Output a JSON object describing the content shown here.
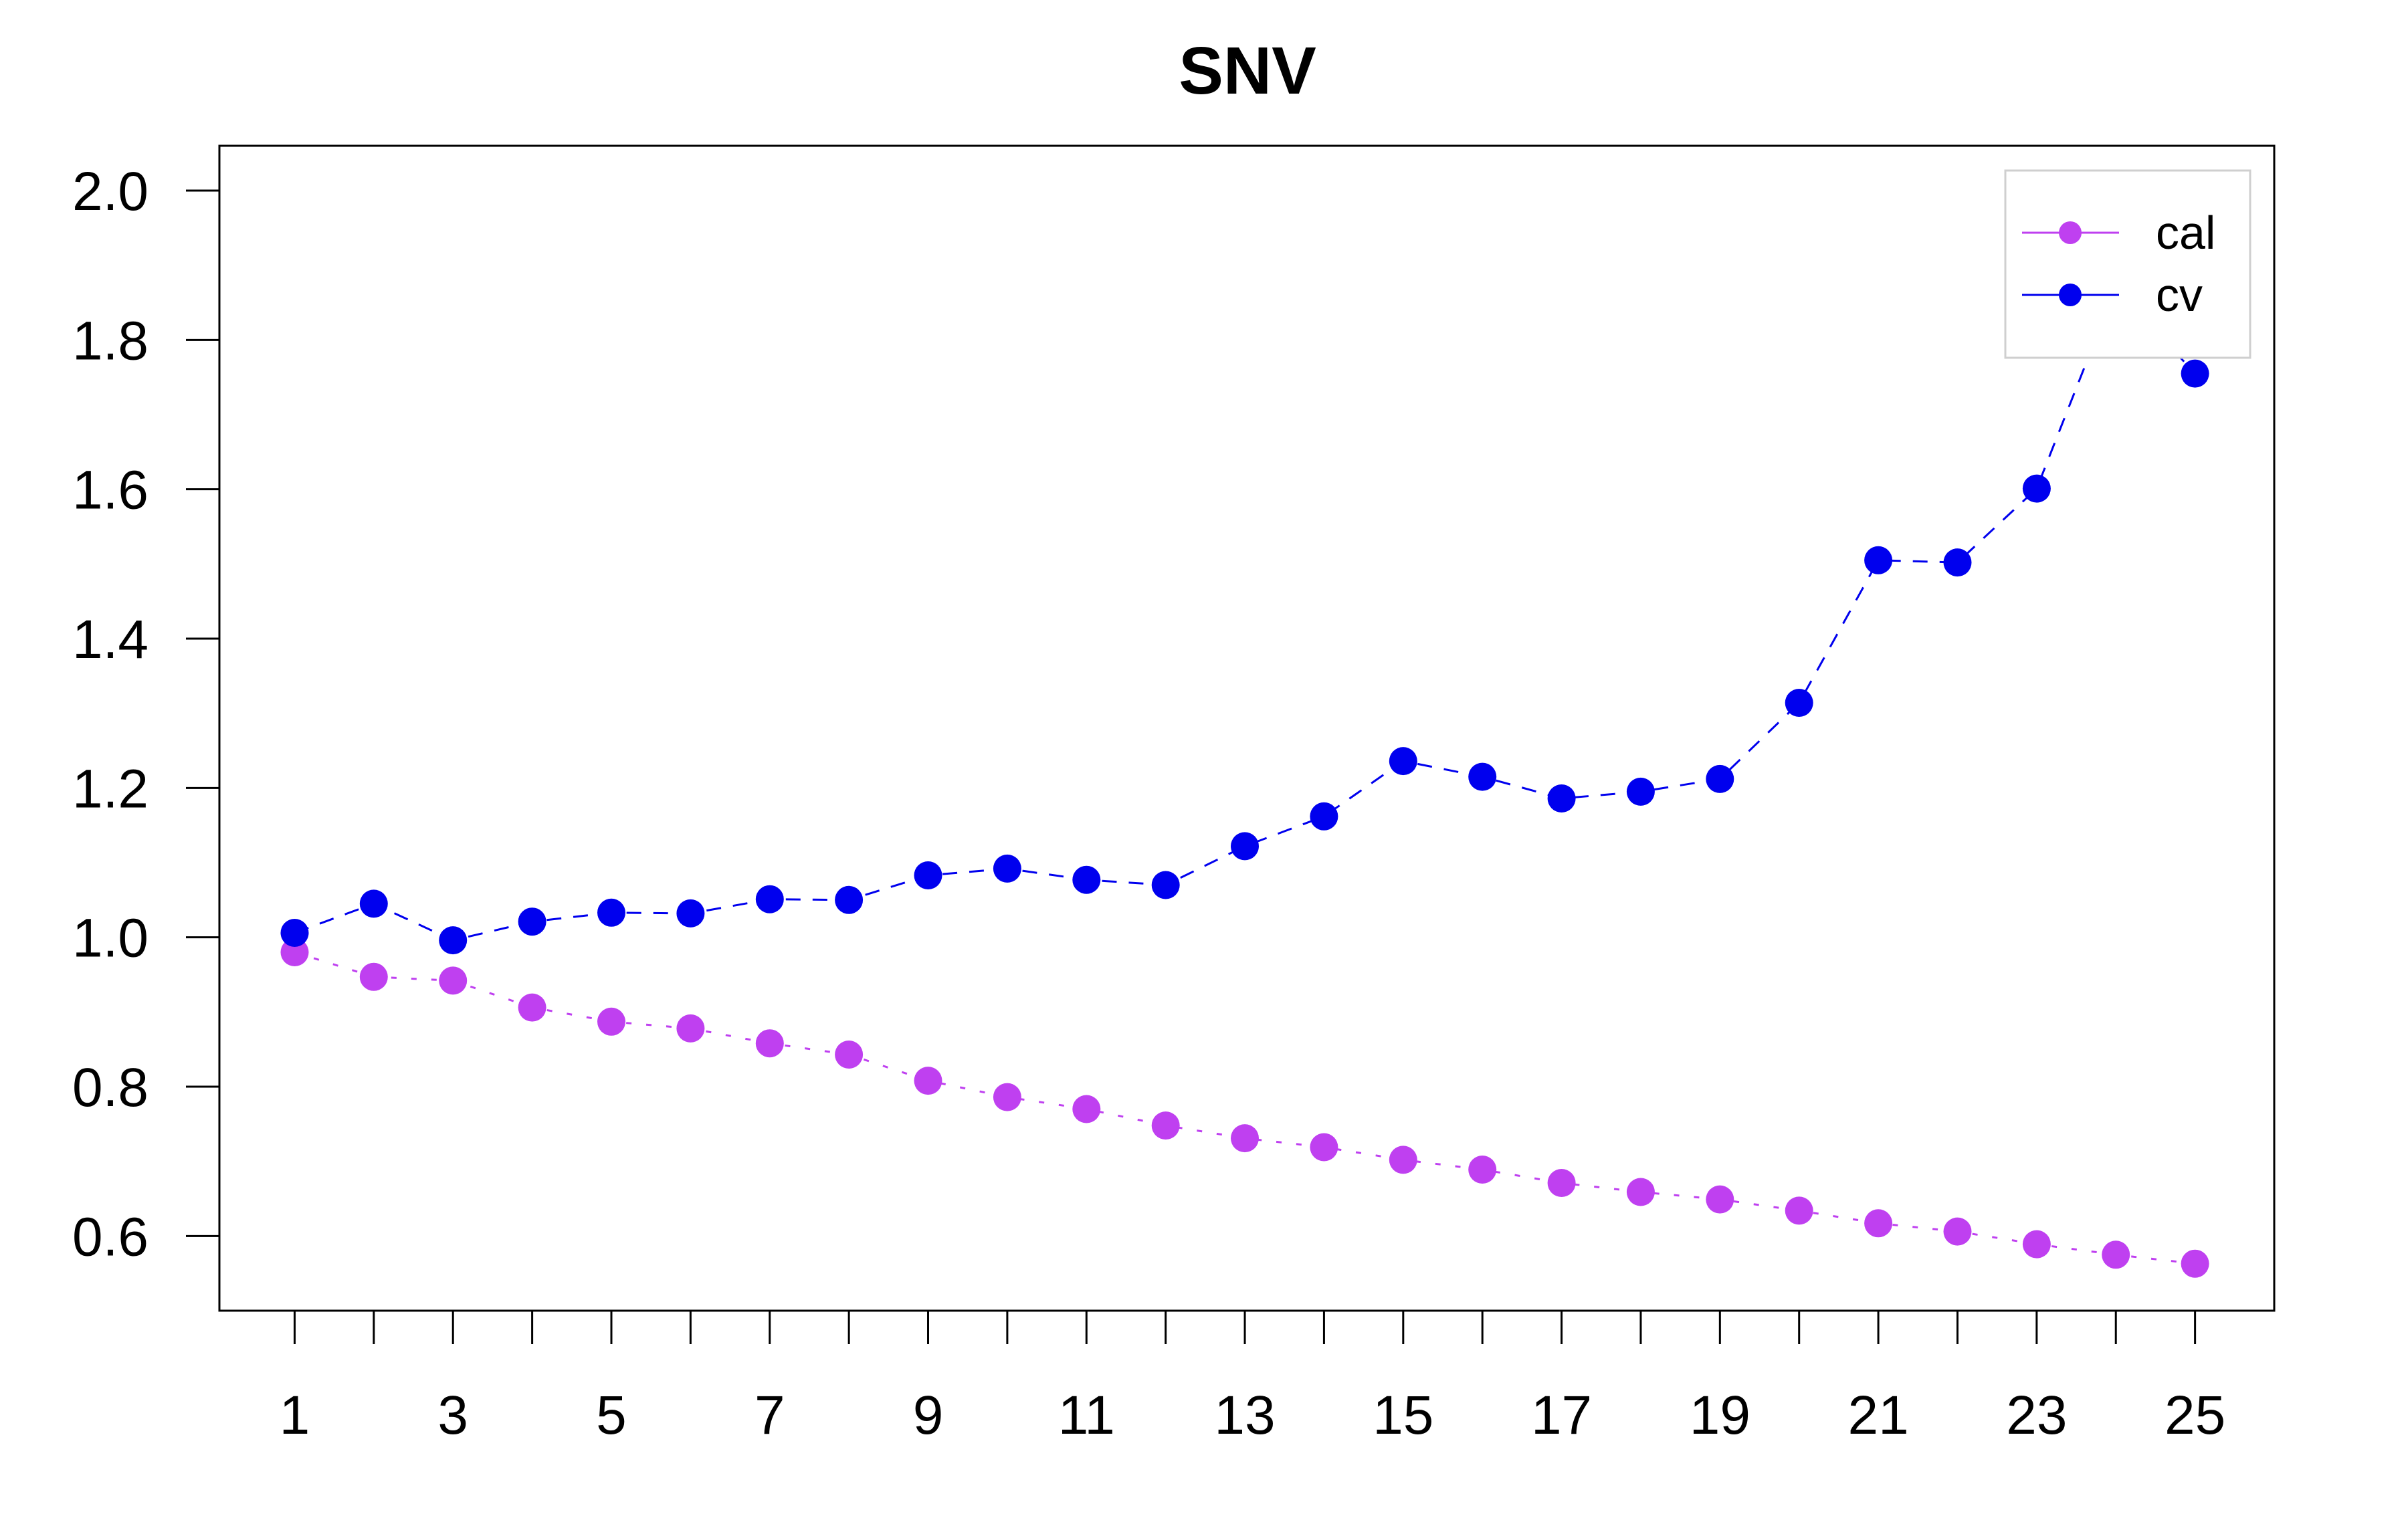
{
  "chart_data": {
    "type": "line",
    "title": "SNV",
    "xlabel": "",
    "ylabel": "",
    "x": [
      1,
      2,
      3,
      4,
      5,
      6,
      7,
      8,
      9,
      10,
      11,
      12,
      13,
      14,
      15,
      16,
      17,
      18,
      19,
      20,
      21,
      22,
      23,
      24,
      25
    ],
    "x_tick_labels": [
      "1",
      "3",
      "5",
      "7",
      "9",
      "11",
      "13",
      "15",
      "17",
      "19",
      "21",
      "23",
      "25"
    ],
    "y_tick_labels": [
      "0.6",
      "0.8",
      "1.0",
      "1.2",
      "1.4",
      "1.6",
      "1.8",
      "2.0"
    ],
    "ylim": [
      0.5,
      2.06
    ],
    "xlim": [
      0.05,
      26.0
    ],
    "grid": false,
    "legend_position": "top-right",
    "series": [
      {
        "name": "cal",
        "color": "#bf40f0",
        "line_style": "dotted",
        "values": [
          0.98,
          0.947,
          0.942,
          0.906,
          0.887,
          0.878,
          0.858,
          0.843,
          0.808,
          0.786,
          0.77,
          0.748,
          0.731,
          0.719,
          0.702,
          0.689,
          0.671,
          0.659,
          0.649,
          0.634,
          0.617,
          0.606,
          0.589,
          0.575,
          0.563
        ]
      },
      {
        "name": "cv",
        "color": "#0000ee",
        "line_style": "dashed",
        "values": [
          1.006,
          1.045,
          0.996,
          1.021,
          1.033,
          1.032,
          1.051,
          1.05,
          1.083,
          1.092,
          1.077,
          1.07,
          1.122,
          1.162,
          1.236,
          1.215,
          1.186,
          1.195,
          1.212,
          1.314,
          1.505,
          1.502,
          1.601,
          1.87,
          1.755
        ]
      }
    ]
  }
}
